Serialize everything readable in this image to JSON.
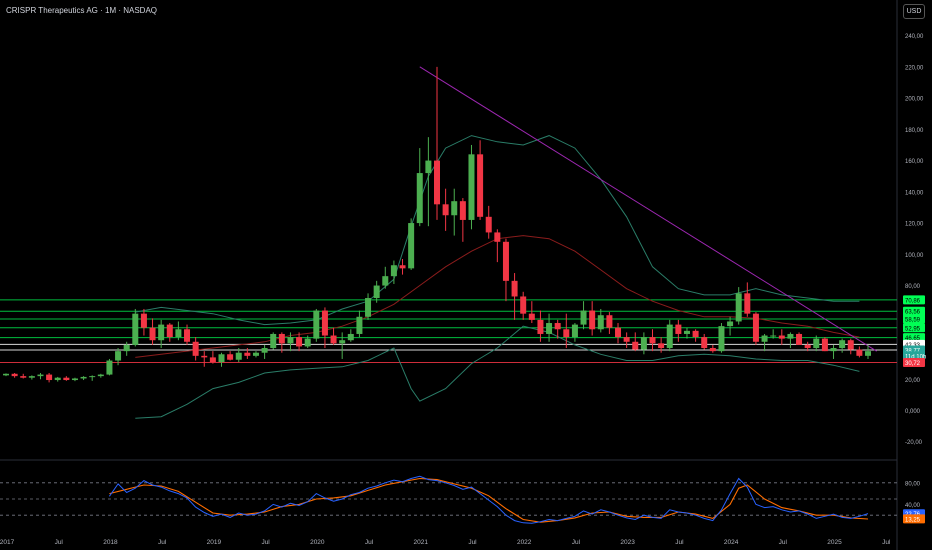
{
  "header": {
    "title": "CRISPR Therapeutics AG · 1M · NASDAQ",
    "currency": "USD"
  },
  "chart_data": {
    "type": "candlestick",
    "y_axis": {
      "ticks": [
        "240,00",
        "220,00",
        "200,00",
        "180,00",
        "160,00",
        "140,00",
        "120,00",
        "100,00",
        "80,00",
        "60,00",
        "40,00",
        "20,00",
        "0,000",
        "-20,00"
      ],
      "tick_values": [
        240,
        220,
        200,
        180,
        160,
        140,
        120,
        100,
        80,
        60,
        40,
        20,
        0,
        -20
      ]
    },
    "x_axis": {
      "labels": [
        "2017",
        "Jul",
        "2018",
        "Jul",
        "2019",
        "Jul",
        "2020",
        "Jul",
        "2021",
        "Jul",
        "2022",
        "Jul",
        "2023",
        "Jul",
        "2024",
        "Jul",
        "2025",
        "Jul"
      ],
      "label_months": [
        0,
        6,
        12,
        18,
        24,
        30,
        36,
        42,
        48,
        54,
        60,
        66,
        72,
        78,
        84,
        90,
        96,
        102
      ]
    },
    "start": "2017-01",
    "candles": [
      [
        22.5,
        23.8,
        22,
        23.5
      ],
      [
        23.5,
        24,
        21,
        22
      ],
      [
        22,
        23.5,
        20.5,
        21
      ],
      [
        21,
        22.5,
        19.8,
        22
      ],
      [
        22,
        24,
        20,
        23
      ],
      [
        23,
        24,
        18,
        19.5
      ],
      [
        19.5,
        21.5,
        18.5,
        21
      ],
      [
        21,
        22,
        19,
        19.5
      ],
      [
        19.5,
        21,
        18.8,
        20.5
      ],
      [
        20.5,
        22,
        19.5,
        21.5
      ],
      [
        21.5,
        22.5,
        19,
        22
      ],
      [
        22,
        23.5,
        21,
        23
      ],
      [
        23,
        33,
        22.5,
        32
      ],
      [
        32,
        40,
        29,
        38
      ],
      [
        38,
        44,
        35,
        42
      ],
      [
        42,
        65,
        41,
        62
      ],
      [
        62,
        65,
        48,
        53
      ],
      [
        53,
        59,
        42,
        45
      ],
      [
        45,
        58,
        40,
        55
      ],
      [
        55,
        56,
        44,
        47
      ],
      [
        47,
        57,
        45,
        52
      ],
      [
        52,
        55,
        42,
        44
      ],
      [
        44,
        47,
        32,
        35
      ],
      [
        35,
        38,
        28,
        34
      ],
      [
        34,
        38,
        30,
        31
      ],
      [
        31,
        37,
        28,
        36
      ],
      [
        36,
        38,
        32,
        32.5
      ],
      [
        32.5,
        40,
        31,
        37
      ],
      [
        37,
        40,
        33,
        35
      ],
      [
        35,
        38,
        34,
        37
      ],
      [
        37,
        42,
        33,
        40
      ],
      [
        40,
        50,
        39,
        49
      ],
      [
        49,
        50,
        37,
        43
      ],
      [
        43,
        50,
        38,
        47
      ],
      [
        47,
        50,
        38,
        41
      ],
      [
        41,
        48,
        40,
        46
      ],
      [
        46,
        65,
        44,
        64
      ],
      [
        64,
        66,
        40,
        48
      ],
      [
        48,
        53,
        42,
        43
      ],
      [
        43,
        50,
        33,
        45
      ],
      [
        45,
        52,
        44,
        49
      ],
      [
        49,
        64,
        47,
        60
      ],
      [
        60,
        75,
        58,
        72
      ],
      [
        72,
        83,
        69,
        80
      ],
      [
        80,
        92,
        78,
        86
      ],
      [
        86,
        96,
        81,
        93
      ],
      [
        93,
        97,
        87,
        91
      ],
      [
        91,
        123,
        90,
        120
      ],
      [
        120,
        168,
        118,
        152
      ],
      [
        152,
        175,
        118,
        160
      ],
      [
        160,
        220,
        122,
        132
      ],
      [
        132,
        142,
        115,
        125
      ],
      [
        125,
        142,
        112,
        134
      ],
      [
        134,
        136,
        108,
        122
      ],
      [
        122,
        170,
        116,
        164
      ],
      [
        164,
        173,
        122,
        124
      ],
      [
        124,
        131,
        110,
        114
      ],
      [
        114,
        116,
        95,
        108
      ],
      [
        108,
        110,
        70,
        83
      ],
      [
        83,
        88,
        58,
        73
      ],
      [
        73,
        76,
        58,
        62
      ],
      [
        62,
        70,
        56,
        58
      ],
      [
        58,
        64,
        44,
        49
      ],
      [
        49,
        62,
        44,
        56
      ],
      [
        56,
        58,
        46,
        52
      ],
      [
        52,
        62,
        40,
        47
      ],
      [
        47,
        56,
        44,
        55
      ],
      [
        55,
        70,
        52,
        64
      ],
      [
        64,
        70,
        48,
        52
      ],
      [
        52,
        65,
        50,
        61
      ],
      [
        61,
        63,
        49,
        53
      ],
      [
        53,
        56,
        43,
        47
      ],
      [
        47,
        50,
        40,
        44
      ],
      [
        44,
        50,
        38,
        39
      ],
      [
        39,
        50,
        36,
        47
      ],
      [
        47,
        52,
        38,
        43
      ],
      [
        43,
        47,
        37,
        40
      ],
      [
        40,
        58,
        38,
        55
      ],
      [
        55,
        58,
        44,
        49
      ],
      [
        49,
        53,
        46,
        51
      ],
      [
        51,
        52,
        44,
        47
      ],
      [
        47,
        49,
        39,
        40
      ],
      [
        40,
        42,
        37,
        38
      ],
      [
        38,
        56,
        37,
        54
      ],
      [
        54,
        60,
        48,
        57
      ],
      [
        57,
        79,
        55,
        75
      ],
      [
        75,
        82,
        60,
        62
      ],
      [
        62,
        63,
        42,
        44
      ],
      [
        44,
        49,
        38,
        48
      ],
      [
        48,
        52,
        46,
        48
      ],
      [
        48,
        52,
        42,
        46
      ],
      [
        46,
        50,
        40,
        49
      ],
      [
        49,
        50,
        42,
        42
      ],
      [
        42,
        44,
        38,
        40
      ],
      [
        40,
        48,
        38,
        46
      ],
      [
        46,
        47,
        38,
        38
      ],
      [
        38,
        42,
        33,
        40
      ],
      [
        40,
        46,
        37,
        45
      ],
      [
        45,
        46,
        36,
        39
      ],
      [
        39,
        41,
        34,
        35
      ],
      [
        35,
        42,
        33,
        38
      ]
    ],
    "moving_average": [
      [
        15,
        34
      ],
      [
        18,
        36
      ],
      [
        21,
        38
      ],
      [
        24,
        40
      ],
      [
        27,
        42
      ],
      [
        30,
        44
      ],
      [
        33,
        48
      ],
      [
        36,
        50
      ],
      [
        39,
        54
      ],
      [
        42,
        60
      ],
      [
        45,
        68
      ],
      [
        48,
        80
      ],
      [
        51,
        92
      ],
      [
        54,
        102
      ],
      [
        57,
        110
      ],
      [
        60,
        112
      ],
      [
        63,
        110
      ],
      [
        66,
        102
      ],
      [
        69,
        90
      ],
      [
        72,
        78
      ],
      [
        75,
        70
      ],
      [
        78,
        64
      ],
      [
        81,
        60
      ],
      [
        84,
        60
      ],
      [
        87,
        59
      ],
      [
        90,
        56
      ],
      [
        93,
        54
      ],
      [
        96,
        50
      ],
      [
        99,
        47
      ]
    ],
    "bollinger_upper": [
      [
        15,
        63
      ],
      [
        18,
        66
      ],
      [
        21,
        64
      ],
      [
        24,
        62
      ],
      [
        27,
        58
      ],
      [
        30,
        55
      ],
      [
        33,
        56
      ],
      [
        36,
        58
      ],
      [
        39,
        65
      ],
      [
        42,
        70
      ],
      [
        45,
        84
      ],
      [
        47,
        118
      ],
      [
        49,
        150
      ],
      [
        51,
        168
      ],
      [
        54,
        176
      ],
      [
        57,
        172
      ],
      [
        60,
        170
      ],
      [
        63,
        176
      ],
      [
        66,
        168
      ],
      [
        69,
        148
      ],
      [
        72,
        124
      ],
      [
        75,
        92
      ],
      [
        78,
        78
      ],
      [
        81,
        74
      ],
      [
        84,
        74
      ],
      [
        87,
        78
      ],
      [
        90,
        74
      ],
      [
        93,
        72
      ],
      [
        96,
        70
      ],
      [
        99,
        70
      ]
    ],
    "bollinger_lower": [
      [
        15,
        -5
      ],
      [
        18,
        -4
      ],
      [
        21,
        4
      ],
      [
        24,
        14
      ],
      [
        27,
        18
      ],
      [
        30,
        24
      ],
      [
        33,
        26
      ],
      [
        36,
        27
      ],
      [
        39,
        28
      ],
      [
        42,
        32
      ],
      [
        45,
        40
      ],
      [
        47,
        14
      ],
      [
        48,
        6
      ],
      [
        51,
        14
      ],
      [
        54,
        30
      ],
      [
        57,
        40
      ],
      [
        60,
        54
      ],
      [
        63,
        50
      ],
      [
        66,
        42
      ],
      [
        69,
        36
      ],
      [
        72,
        32
      ],
      [
        75,
        32
      ],
      [
        78,
        35
      ],
      [
        81,
        36
      ],
      [
        84,
        35
      ],
      [
        87,
        33
      ],
      [
        90,
        32
      ],
      [
        93,
        32
      ],
      [
        96,
        29
      ],
      [
        99,
        25
      ]
    ],
    "trendline": {
      "from": [
        48,
        220
      ],
      "to": [
        101,
        38
      ]
    },
    "horizontal_levels": [
      70.86,
      63.56,
      58.59,
      52.95,
      46.65,
      42.33,
      38.77,
      30.72
    ],
    "price_labels": [
      {
        "text": "70,86",
        "value": 70.86,
        "color": "#00ff55"
      },
      {
        "text": "63,56",
        "value": 63.56,
        "color": "#00ff55"
      },
      {
        "text": "58,59",
        "value": 58.59,
        "color": "#00ff55"
      },
      {
        "text": "52,95",
        "value": 52.95,
        "color": "#00ff55"
      },
      {
        "text": "46,65",
        "value": 46.65,
        "color": "#00ff55"
      },
      {
        "text": "42,33",
        "value": 42.33,
        "color": "#ffffff"
      },
      {
        "text": "38,77",
        "value": 38.77,
        "color": "#26a69a"
      },
      {
        "text": "11d 10h",
        "value": 35.0,
        "color": "#26a69a"
      },
      {
        "text": "30,72",
        "value": 30.72,
        "color": "#f23645"
      }
    ],
    "oscillator": {
      "ticks": [
        "80,00",
        "40,00"
      ],
      "tick_values": [
        80,
        40
      ],
      "levels": [
        80,
        50,
        20
      ],
      "k_line": [
        [
          12,
          55
        ],
        [
          13,
          78
        ],
        [
          14,
          62
        ],
        [
          15,
          70
        ],
        [
          16,
          84
        ],
        [
          17,
          76
        ],
        [
          18,
          72
        ],
        [
          19,
          65
        ],
        [
          20,
          60
        ],
        [
          21,
          52
        ],
        [
          22,
          35
        ],
        [
          23,
          25
        ],
        [
          24,
          18
        ],
        [
          25,
          22
        ],
        [
          26,
          16
        ],
        [
          27,
          24
        ],
        [
          28,
          20
        ],
        [
          29,
          22
        ],
        [
          30,
          28
        ],
        [
          31,
          40
        ],
        [
          32,
          35
        ],
        [
          33,
          42
        ],
        [
          34,
          38
        ],
        [
          35,
          45
        ],
        [
          36,
          60
        ],
        [
          37,
          52
        ],
        [
          38,
          46
        ],
        [
          39,
          50
        ],
        [
          40,
          58
        ],
        [
          41,
          62
        ],
        [
          42,
          70
        ],
        [
          43,
          74
        ],
        [
          44,
          80
        ],
        [
          45,
          85
        ],
        [
          46,
          82
        ],
        [
          47,
          88
        ],
        [
          48,
          92
        ],
        [
          49,
          86
        ],
        [
          50,
          84
        ],
        [
          51,
          80
        ],
        [
          52,
          75
        ],
        [
          53,
          68
        ],
        [
          54,
          72
        ],
        [
          55,
          60
        ],
        [
          56,
          48
        ],
        [
          57,
          36
        ],
        [
          58,
          20
        ],
        [
          59,
          10
        ],
        [
          60,
          6
        ],
        [
          61,
          5
        ],
        [
          62,
          8
        ],
        [
          63,
          12
        ],
        [
          64,
          10
        ],
        [
          65,
          14
        ],
        [
          66,
          18
        ],
        [
          67,
          28
        ],
        [
          68,
          22
        ],
        [
          69,
          30
        ],
        [
          70,
          26
        ],
        [
          71,
          20
        ],
        [
          72,
          15
        ],
        [
          73,
          12
        ],
        [
          74,
          20
        ],
        [
          75,
          16
        ],
        [
          76,
          14
        ],
        [
          77,
          30
        ],
        [
          78,
          26
        ],
        [
          79,
          24
        ],
        [
          80,
          20
        ],
        [
          81,
          14
        ],
        [
          82,
          10
        ],
        [
          83,
          30
        ],
        [
          84,
          60
        ],
        [
          85,
          88
        ],
        [
          86,
          72
        ],
        [
          87,
          40
        ],
        [
          88,
          34
        ],
        [
          89,
          36
        ],
        [
          90,
          30
        ],
        [
          91,
          26
        ],
        [
          92,
          28
        ],
        [
          93,
          22
        ],
        [
          94,
          14
        ],
        [
          95,
          18
        ],
        [
          96,
          22
        ],
        [
          97,
          16
        ],
        [
          98,
          14
        ],
        [
          99,
          18
        ],
        [
          100,
          23
        ]
      ],
      "d_line": [
        [
          12,
          60
        ],
        [
          14,
          68
        ],
        [
          16,
          76
        ],
        [
          18,
          74
        ],
        [
          20,
          64
        ],
        [
          22,
          44
        ],
        [
          24,
          24
        ],
        [
          26,
          20
        ],
        [
          28,
          22
        ],
        [
          30,
          26
        ],
        [
          32,
          36
        ],
        [
          34,
          40
        ],
        [
          36,
          50
        ],
        [
          38,
          52
        ],
        [
          40,
          56
        ],
        [
          42,
          66
        ],
        [
          44,
          76
        ],
        [
          46,
          82
        ],
        [
          48,
          88
        ],
        [
          50,
          86
        ],
        [
          52,
          78
        ],
        [
          54,
          70
        ],
        [
          56,
          56
        ],
        [
          58,
          32
        ],
        [
          60,
          12
        ],
        [
          62,
          7
        ],
        [
          64,
          10
        ],
        [
          66,
          15
        ],
        [
          68,
          24
        ],
        [
          70,
          26
        ],
        [
          72,
          18
        ],
        [
          74,
          16
        ],
        [
          76,
          16
        ],
        [
          78,
          26
        ],
        [
          80,
          22
        ],
        [
          82,
          14
        ],
        [
          84,
          40
        ],
        [
          85,
          70
        ],
        [
          86,
          76
        ],
        [
          88,
          50
        ],
        [
          90,
          34
        ],
        [
          92,
          28
        ],
        [
          94,
          20
        ],
        [
          96,
          20
        ],
        [
          98,
          15
        ],
        [
          100,
          13
        ]
      ],
      "k_label": {
        "text": "22,76",
        "value": 22.76,
        "color": "#2962ff"
      },
      "d_label": {
        "text": "13,25",
        "value": 13.25,
        "color": "#ff6d00"
      }
    },
    "colors": {
      "up": "#26a69a",
      "up_body": "#4caf50",
      "down": "#f23645",
      "ma": "#8b1c1c",
      "band": "#2a7d68",
      "trend": "#9c27b0",
      "level": "#00e04a",
      "k": "#2962ff",
      "d": "#ff6d00"
    }
  }
}
